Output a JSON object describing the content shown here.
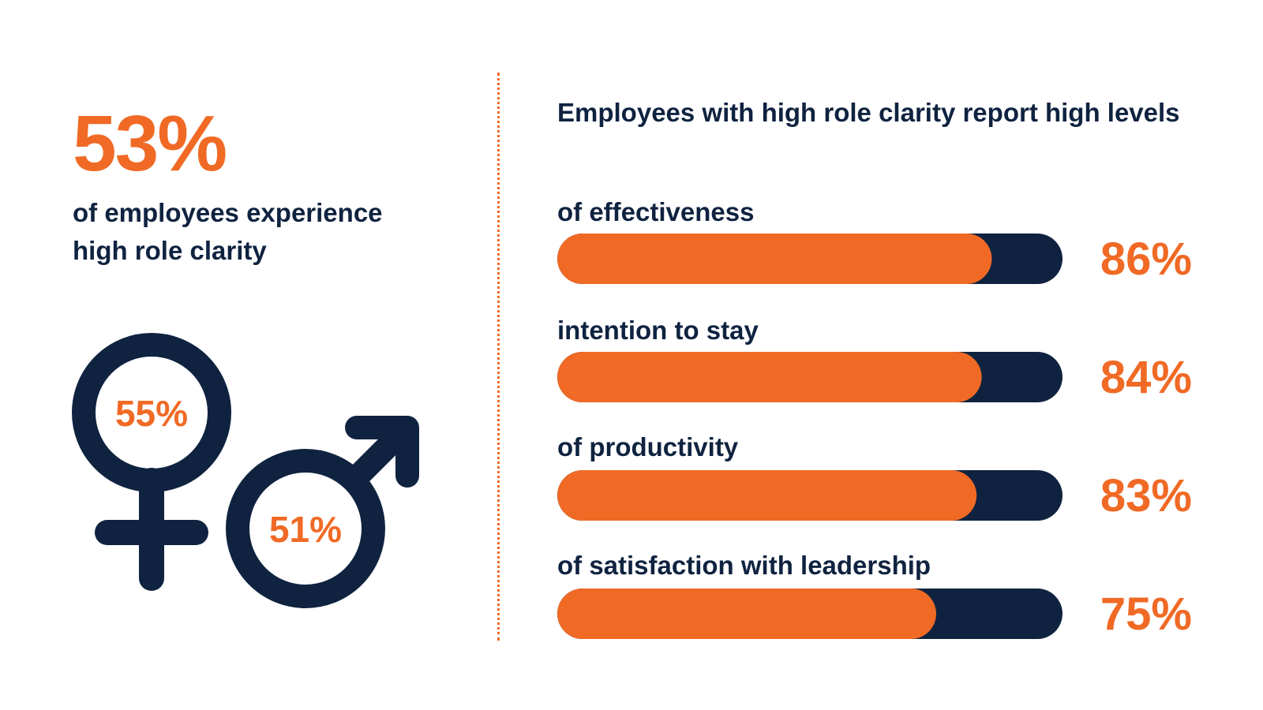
{
  "headline": {
    "value": "53%",
    "description": "of employees experience high role clarity"
  },
  "gender": {
    "female_value": "55%",
    "male_value": "51%",
    "female_icon": "female-symbol-icon",
    "male_icon": "male-symbol-icon"
  },
  "colors": {
    "accent": "#f06a25",
    "navy": "#0f2340",
    "background": "#ffffff"
  },
  "chart_data": {
    "type": "bar",
    "title": "Employees with high role clarity report high levels",
    "orientation": "horizontal",
    "categories": [
      "of effectiveness",
      "intention to stay",
      "of productivity",
      "of satisfaction with leadership"
    ],
    "values": [
      86,
      84,
      83,
      75
    ],
    "value_labels": [
      "86%",
      "84%",
      "83%",
      "75%"
    ],
    "ylim": [
      0,
      100
    ],
    "grid": false
  }
}
